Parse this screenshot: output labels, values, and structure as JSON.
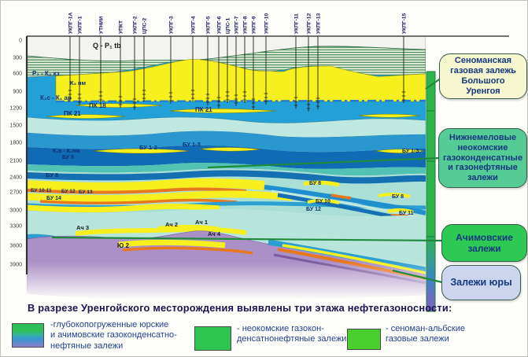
{
  "figure": {
    "caption": "В разрезе Уренгойского месторождения выявлены три этажа нефтегазоносности:"
  },
  "section": {
    "wells": [
      "УКПГ-1А",
      "УКПГ-1",
      "УТНИИ",
      "УПКТ",
      "УКПГ-2",
      "ЦПС-2",
      "УКПГ-3",
      "УКПГ-4",
      "УКПГ-5",
      "УКПГ-6",
      "ЦПС-1",
      "УКПГ-7",
      "УКПГ-8",
      "УКПГ-9",
      "УКПГ-10",
      "УКПГ-11",
      "УКПГ-12",
      "УКПГ-13",
      "УКПГ-15"
    ],
    "depth_ticks": [
      "0",
      "300",
      "600",
      "900",
      "1200",
      "1500",
      "1800",
      "2100",
      "2400",
      "2700",
      "3000",
      "3300",
      "3600",
      "3900"
    ],
    "strata_labels": [
      "Q - P₁ tb",
      "Р₂ - К₂ кз",
      "К₂ нм",
      "К₂с - К₁ ар",
      "ПК 18",
      "ПК 21",
      "ПК 21",
      "К₁в - К₁нм",
      "БУ 5",
      "БУ 1-2",
      "БУ 1-3",
      "БУ 1-3",
      "БУ 8",
      "БУ 10-11",
      "БУ 12",
      "БУ 13",
      "БУ 14",
      "БУ 8",
      "БУ 10",
      "БУ 12",
      "БУ 8",
      "БУ 11",
      "Ач 3",
      "Ач 2",
      "Ач 1",
      "Ач 4",
      "Ю 2"
    ]
  },
  "callouts": [
    {
      "text": "Сеноманская газовая залежь Большого Уренгоя"
    },
    {
      "text": "Нижнемеловые неокомские газоконденсатные и газонефтяные залежи"
    },
    {
      "text": "Ачимовские залежи"
    },
    {
      "text": "Залежи юры"
    }
  ],
  "legend": {
    "items": [
      {
        "lines": [
          "-глубокопогруженные юрские",
          "и ачимовские газоконденсатно-",
          "нефтяные залежи"
        ]
      },
      {
        "lines": [
          "- неокомские газокон-",
          "денсатнонефтяные залежи"
        ]
      },
      {
        "lines": [
          "- сеноман-альбские",
          "газовые залежи"
        ]
      }
    ]
  },
  "colors": {
    "gas_yellow": "#f7ef1e",
    "oil_orange": "#e8781c",
    "water_blue": "#22a0d8",
    "deep_blue": "#0f6cb4",
    "pale_aqua": "#bfe9e0",
    "jurassic_purple": "#ab90c7",
    "bar_green": "#2db44c",
    "callout_green": "#2ec854",
    "callout_cream": "#f6f6cf",
    "callout_lavender": "#cdd4ed"
  }
}
